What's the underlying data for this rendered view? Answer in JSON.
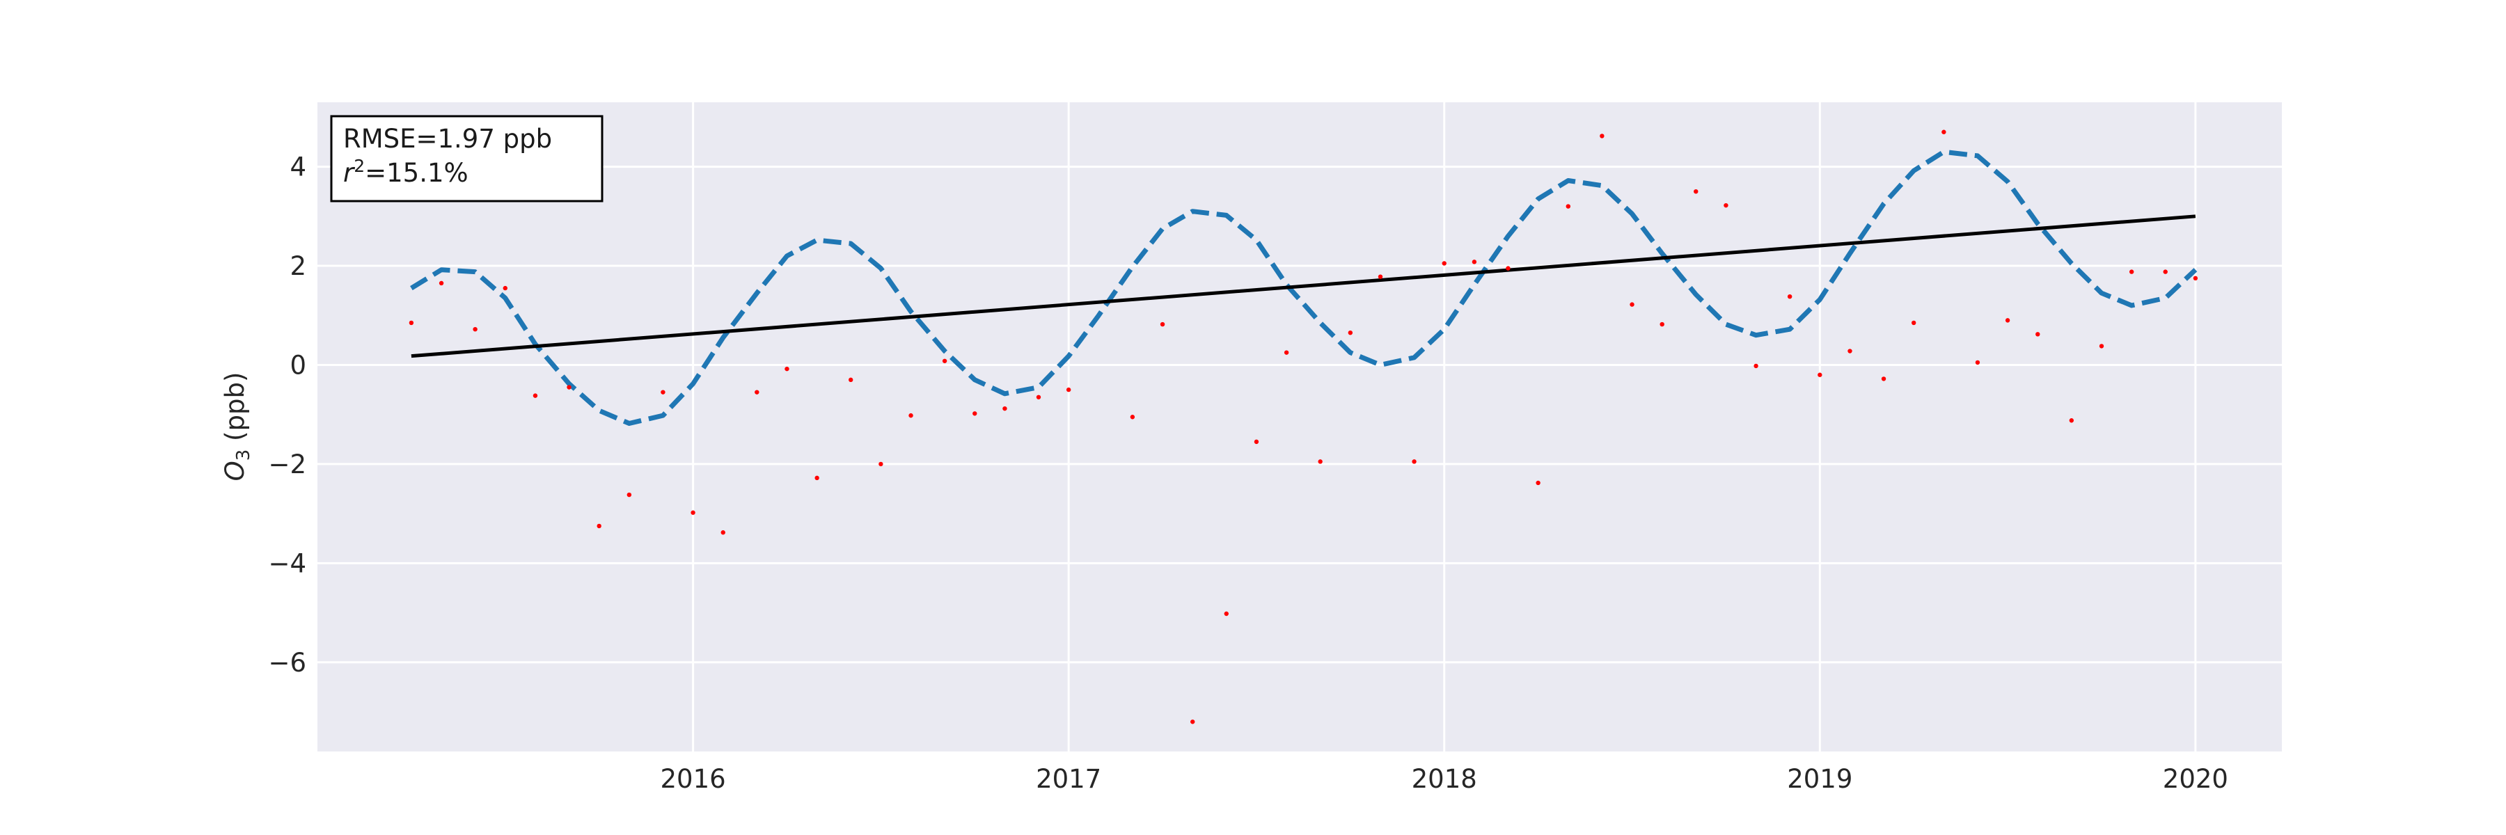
{
  "chart_data": {
    "type": "scatter",
    "title": "",
    "xlabel": "",
    "ylabel_main": "O",
    "ylabel_sub": "3",
    "ylabel_unit": " (ppb)",
    "xlim": [
      2015.0,
      2020.23
    ],
    "ylim": [
      -7.8,
      5.3
    ],
    "x_ticks": [
      2016,
      2017,
      2018,
      2019,
      2020
    ],
    "x_tick_labels": [
      "2016",
      "2017",
      "2018",
      "2019",
      "2020"
    ],
    "y_ticks": [
      -6,
      -4,
      -2,
      0,
      2,
      4
    ],
    "y_tick_labels": [
      "−6",
      "−4",
      "−2",
      "0",
      "2",
      "4"
    ],
    "grid": true,
    "colors": {
      "background": "#eaeaf2",
      "grid": "#ffffff",
      "observations": "#ff0000",
      "trend": "#000000",
      "seasonal_fit": "#1f77b4"
    },
    "annotation": {
      "rmse_text": "RMSE=1.97 ppb",
      "r2_symbol": "r",
      "r2_sup": "2",
      "r2_value": "=15.1%"
    },
    "series": [
      {
        "kind": "observations",
        "x": [
          2015.25,
          2015.33,
          2015.42,
          2015.5,
          2015.58,
          2015.67,
          2015.75,
          2015.83,
          2015.92,
          2016.0,
          2016.08,
          2016.17,
          2016.25,
          2016.33,
          2016.42,
          2016.5,
          2016.58,
          2016.67,
          2016.75,
          2016.83,
          2016.92,
          2017.0,
          2017.17,
          2017.25,
          2017.33,
          2017.42,
          2017.5,
          2017.58,
          2017.67,
          2017.75,
          2017.83,
          2017.92,
          2018.0,
          2018.08,
          2018.17,
          2018.25,
          2018.33,
          2018.42,
          2018.5,
          2018.58,
          2018.67,
          2018.75,
          2018.83,
          2018.92,
          2019.0,
          2019.08,
          2019.17,
          2019.25,
          2019.33,
          2019.42,
          2019.5,
          2019.58,
          2019.67,
          2019.75,
          2019.83,
          2019.92,
          2020.0
        ],
        "y": [
          0.85,
          1.65,
          0.72,
          1.55,
          -0.62,
          -0.45,
          -3.25,
          -2.62,
          -0.55,
          -2.98,
          -3.38,
          -0.55,
          -0.08,
          -2.28,
          -0.3,
          -2.0,
          -1.02,
          0.08,
          -0.98,
          -0.88,
          -0.65,
          -0.5,
          -1.05,
          0.82,
          -7.2,
          -5.02,
          -1.55,
          0.25,
          -1.95,
          0.65,
          1.78,
          -1.95,
          2.05,
          2.08,
          1.95,
          -2.38,
          3.2,
          4.62,
          1.22,
          0.82,
          3.5,
          3.22,
          -0.02,
          1.38,
          -0.2,
          0.28,
          -0.28,
          0.85,
          4.7,
          0.05,
          0.9,
          0.62,
          -1.12,
          0.38,
          1.88,
          1.88,
          1.75
        ]
      },
      {
        "kind": "trend",
        "x": [
          2015.25,
          2020.0
        ],
        "y": [
          0.18,
          3.0
        ]
      },
      {
        "kind": "seasonal_fit",
        "x": [
          2015.25,
          2015.33,
          2015.42,
          2015.5,
          2015.58,
          2015.67,
          2015.75,
          2015.83,
          2015.92,
          2016.0,
          2016.08,
          2016.17,
          2016.25,
          2016.33,
          2016.42,
          2016.5,
          2016.58,
          2016.67,
          2016.75,
          2016.83,
          2016.92,
          2017.0,
          2017.08,
          2017.17,
          2017.25,
          2017.33,
          2017.42,
          2017.5,
          2017.58,
          2017.67,
          2017.75,
          2017.83,
          2017.92,
          2018.0,
          2018.08,
          2018.17,
          2018.25,
          2018.33,
          2018.42,
          2018.5,
          2018.58,
          2018.67,
          2018.75,
          2018.83,
          2018.92,
          2019.0,
          2019.08,
          2019.17,
          2019.25,
          2019.33,
          2019.42,
          2019.5,
          2019.58,
          2019.67,
          2019.75,
          2019.83,
          2019.92,
          2020.0
        ],
        "y": [
          1.55,
          1.92,
          1.88,
          1.35,
          0.42,
          -0.38,
          -0.92,
          -1.18,
          -1.02,
          -0.38,
          0.55,
          1.45,
          2.2,
          2.52,
          2.45,
          1.95,
          1.08,
          0.28,
          -0.3,
          -0.58,
          -0.45,
          0.18,
          1.0,
          1.98,
          2.75,
          3.1,
          3.02,
          2.52,
          1.62,
          0.85,
          0.25,
          0.0,
          0.15,
          0.72,
          1.62,
          2.6,
          3.35,
          3.72,
          3.62,
          3.05,
          2.25,
          1.42,
          0.82,
          0.6,
          0.72,
          1.32,
          2.25,
          3.25,
          3.92,
          4.3,
          4.22,
          3.7,
          2.85,
          2.05,
          1.45,
          1.2,
          1.35,
          1.92
        ]
      }
    ]
  }
}
